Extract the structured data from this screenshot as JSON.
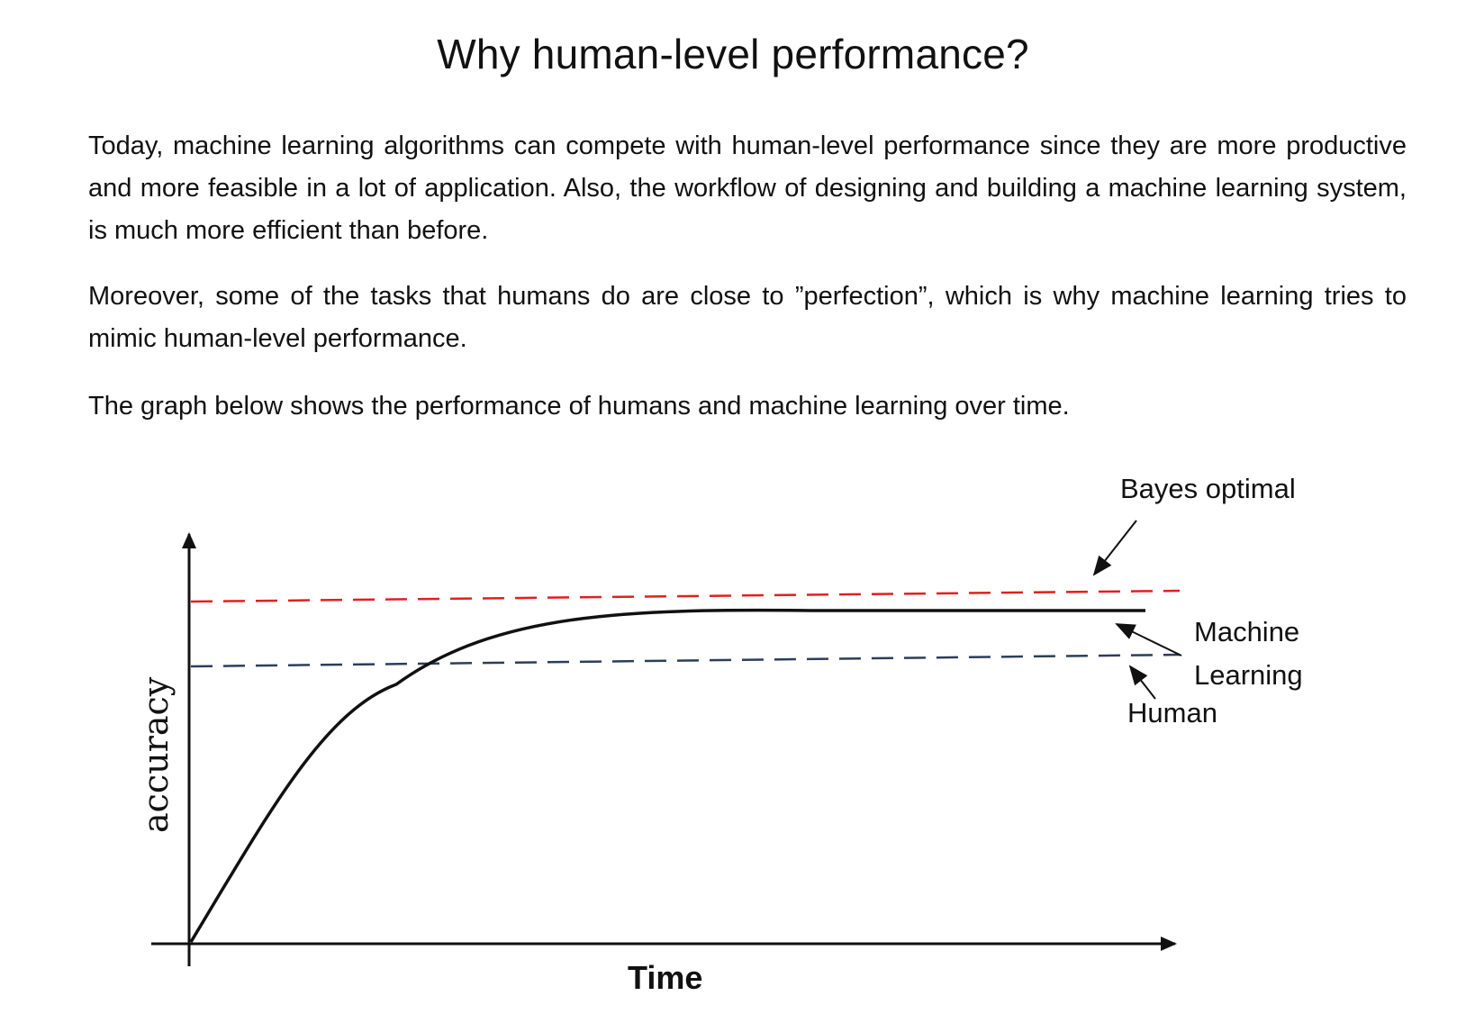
{
  "title": "Why human-level performance?",
  "paragraphs": [
    "Today, machine learning algorithms can compete with human-level performance since they are more productive and more feasible in a lot of application. Also, the workflow of designing and building a machine learning system, is much more efficient than before.",
    "Moreover, some of the tasks that humans do are close to ”perfection”, which is why machine learning tries to mimic human-level performance.",
    "The graph below shows the performance of humans and machine learning over time."
  ],
  "figure": {
    "y_axis_label": "accuracy",
    "x_axis_label": "Time",
    "labels": {
      "bayes": "Bayes optimal",
      "ml_line1": "Machine",
      "ml_line2": "Learning",
      "human": "Human"
    },
    "colors": {
      "bayes_line": "#e02020",
      "human_line": "#2c3e5a",
      "ml_curve": "#111111",
      "axes": "#111111"
    }
  }
}
